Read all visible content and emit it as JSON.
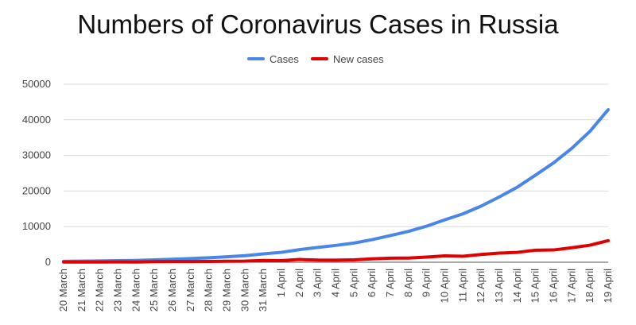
{
  "chart_data": {
    "type": "line",
    "title": "Numbers of Coronavirus Cases in Russia",
    "categories": [
      "20 March",
      "21 March",
      "22 March",
      "23 March",
      "24 March",
      "25 March",
      "26 March",
      "27 March",
      "28 March",
      "29 March",
      "30 March",
      "31 March",
      "1 April",
      "2 April",
      "3 April",
      "4 April",
      "5 April",
      "6 April",
      "7 April",
      "8 April",
      "9 April",
      "10 April",
      "11 April",
      "12 April",
      "13 April",
      "14 April",
      "15 April",
      "16 April",
      "17 April",
      "18 April",
      "19 April"
    ],
    "series": [
      {
        "name": "Cases",
        "color": "#4a86e8",
        "values": [
          253,
          306,
          367,
          438,
          495,
          658,
          840,
          1036,
          1264,
          1534,
          1836,
          2337,
          2777,
          3548,
          4149,
          4731,
          5389,
          6343,
          7497,
          8672,
          10131,
          11917,
          13584,
          15770,
          18328,
          21102,
          24490,
          27938,
          32008,
          36793,
          42853
        ]
      },
      {
        "name": "New cases",
        "color": "#e00000",
        "values": [
          54,
          53,
          61,
          71,
          57,
          163,
          182,
          196,
          228,
          270,
          302,
          501,
          440,
          771,
          601,
          582,
          658,
          954,
          1154,
          1175,
          1459,
          1786,
          1667,
          2186,
          2558,
          2774,
          3388,
          3448,
          4070,
          4785,
          6060
        ]
      }
    ],
    "yticks": [
      0,
      10000,
      20000,
      30000,
      40000,
      50000
    ],
    "ylim": [
      0,
      50000
    ],
    "grid": true,
    "legend": {
      "placement": "top-center",
      "entries": [
        "Cases",
        "New cases"
      ]
    }
  }
}
